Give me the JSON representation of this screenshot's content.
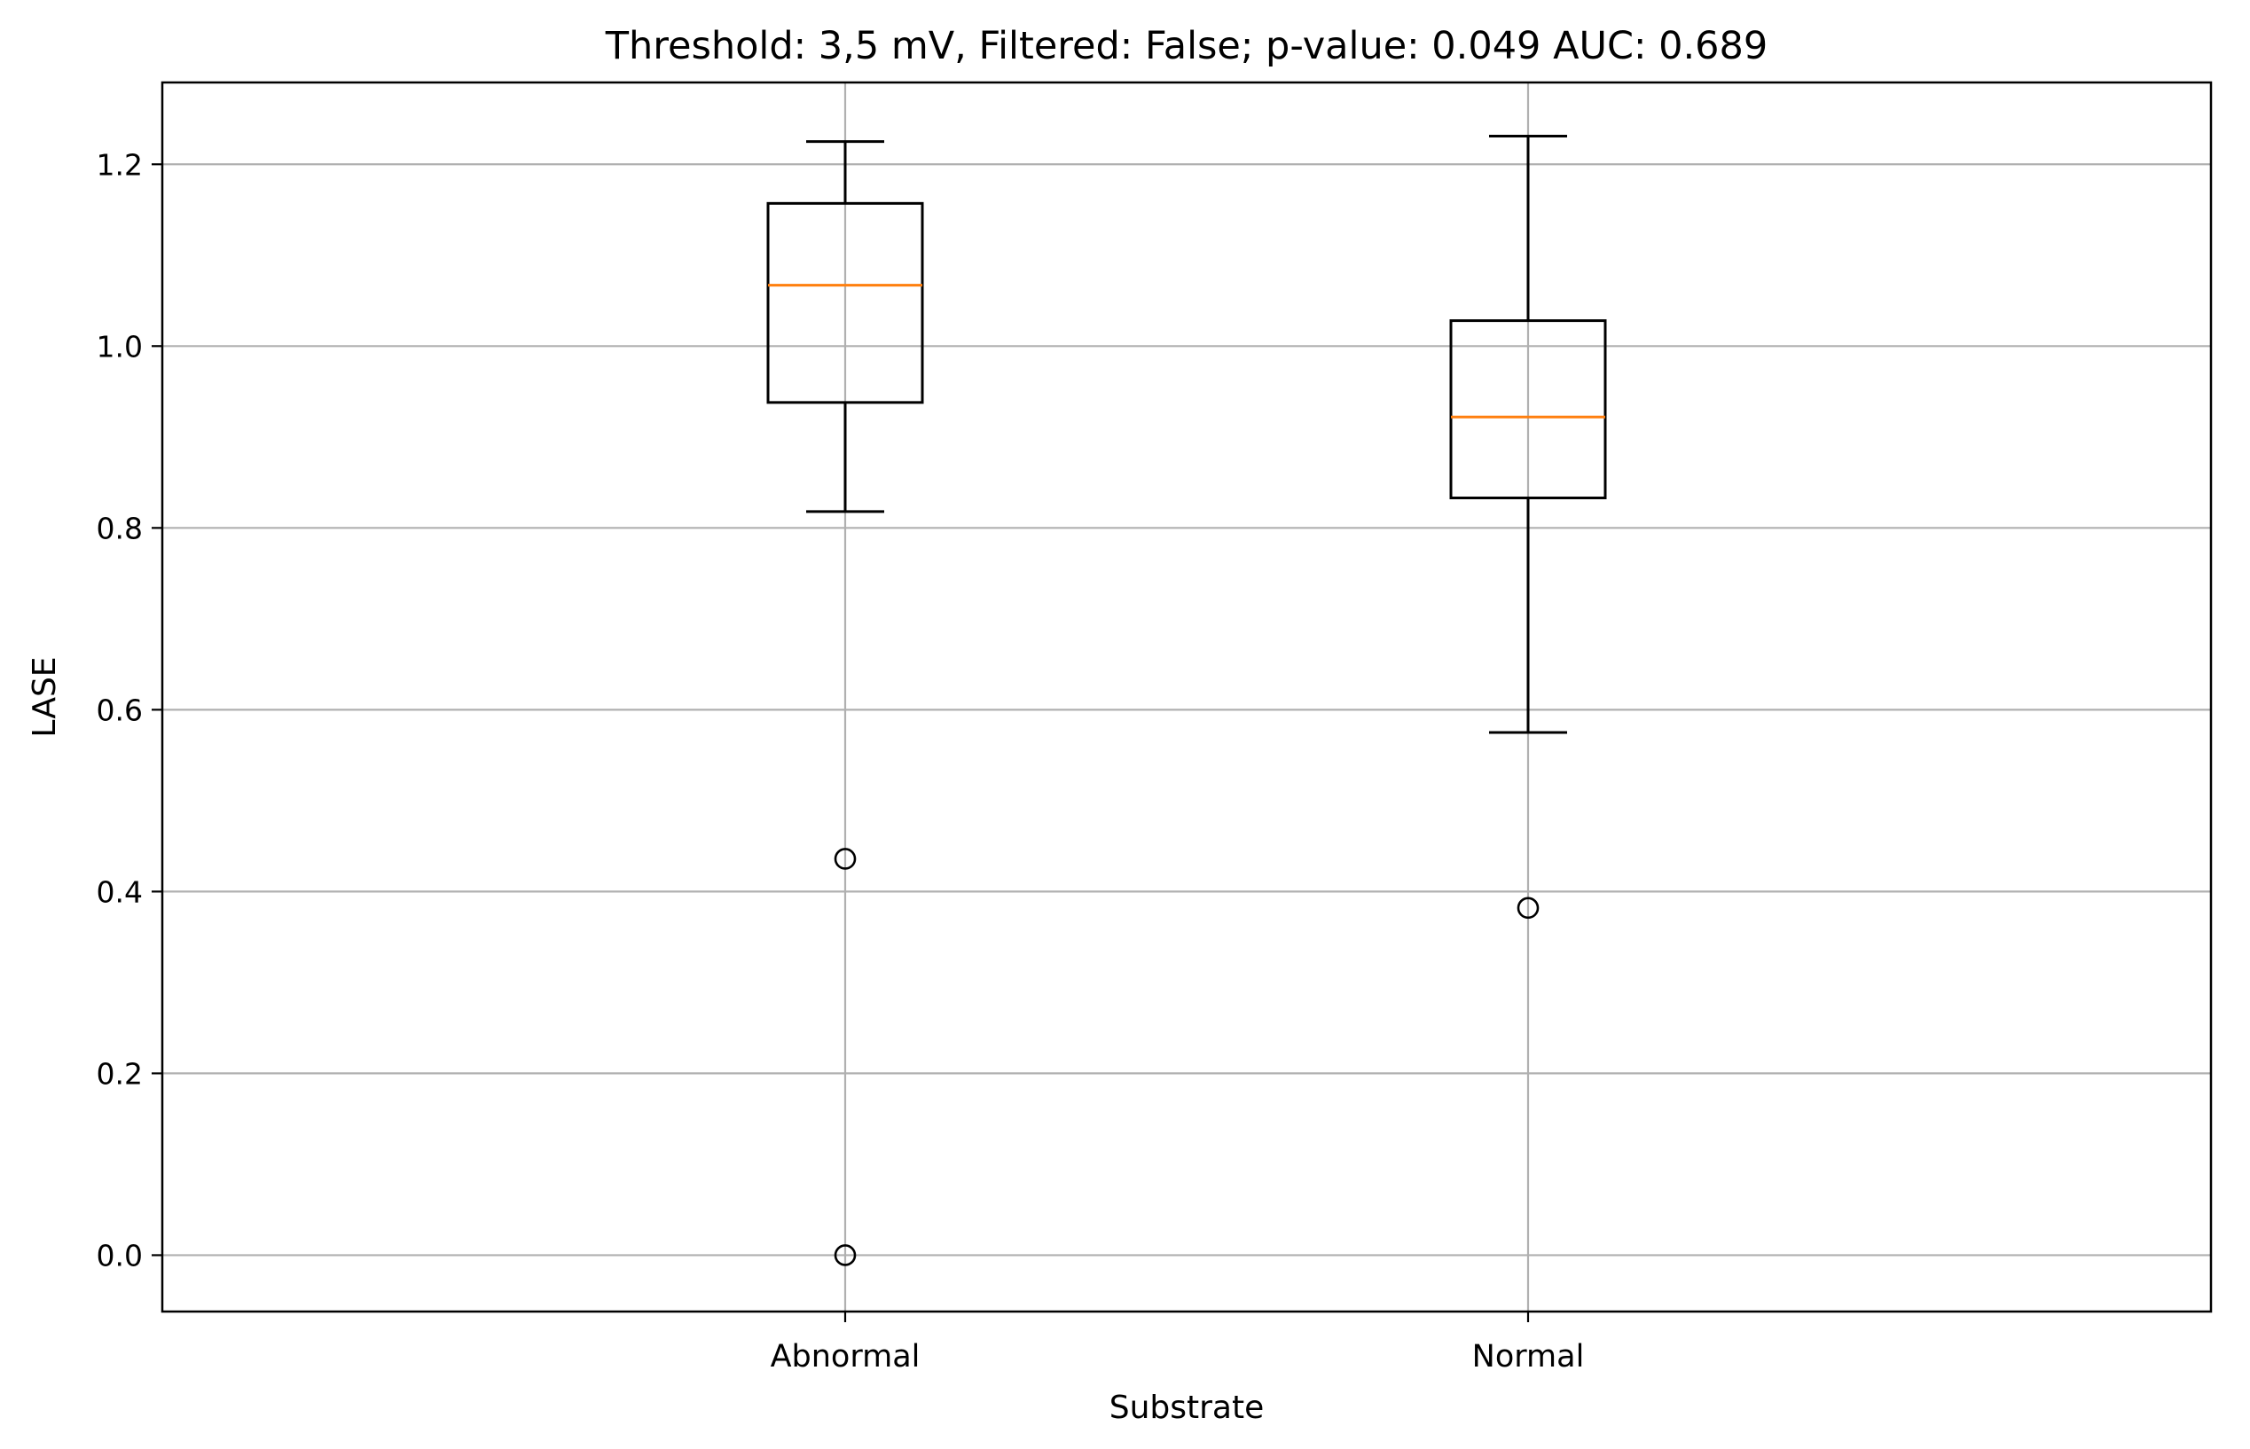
{
  "chart_data": {
    "type": "box",
    "title": "Threshold: 3,5 mV, Filtered: False; p-value: 0.049 AUC: 0.689",
    "xlabel": "Substrate",
    "ylabel": "LASE",
    "categories": [
      "Abnormal",
      "Normal"
    ],
    "boxes": [
      {
        "category": "Abnormal",
        "whisker_low": 0.818,
        "q1": 0.938,
        "median": 1.067,
        "q3": 1.157,
        "whisker_high": 1.225,
        "outliers": [
          0.436,
          0.0
        ]
      },
      {
        "category": "Normal",
        "whisker_low": 0.575,
        "q1": 0.833,
        "median": 0.922,
        "q3": 1.028,
        "whisker_high": 1.231,
        "outliers": [
          0.382
        ]
      }
    ],
    "ylim": [
      -0.062,
      1.29
    ],
    "yticks": [
      0.0,
      0.2,
      0.4,
      0.6,
      0.8,
      1.0,
      1.2
    ],
    "ytick_labels": [
      "0.0",
      "0.2",
      "0.4",
      "0.6",
      "0.8",
      "1.0",
      "1.2"
    ],
    "grid": true,
    "colors": {
      "box": "#000000",
      "median": "#ff7f0e",
      "grid": "#b0b0b0",
      "outlier": "#000000"
    }
  }
}
